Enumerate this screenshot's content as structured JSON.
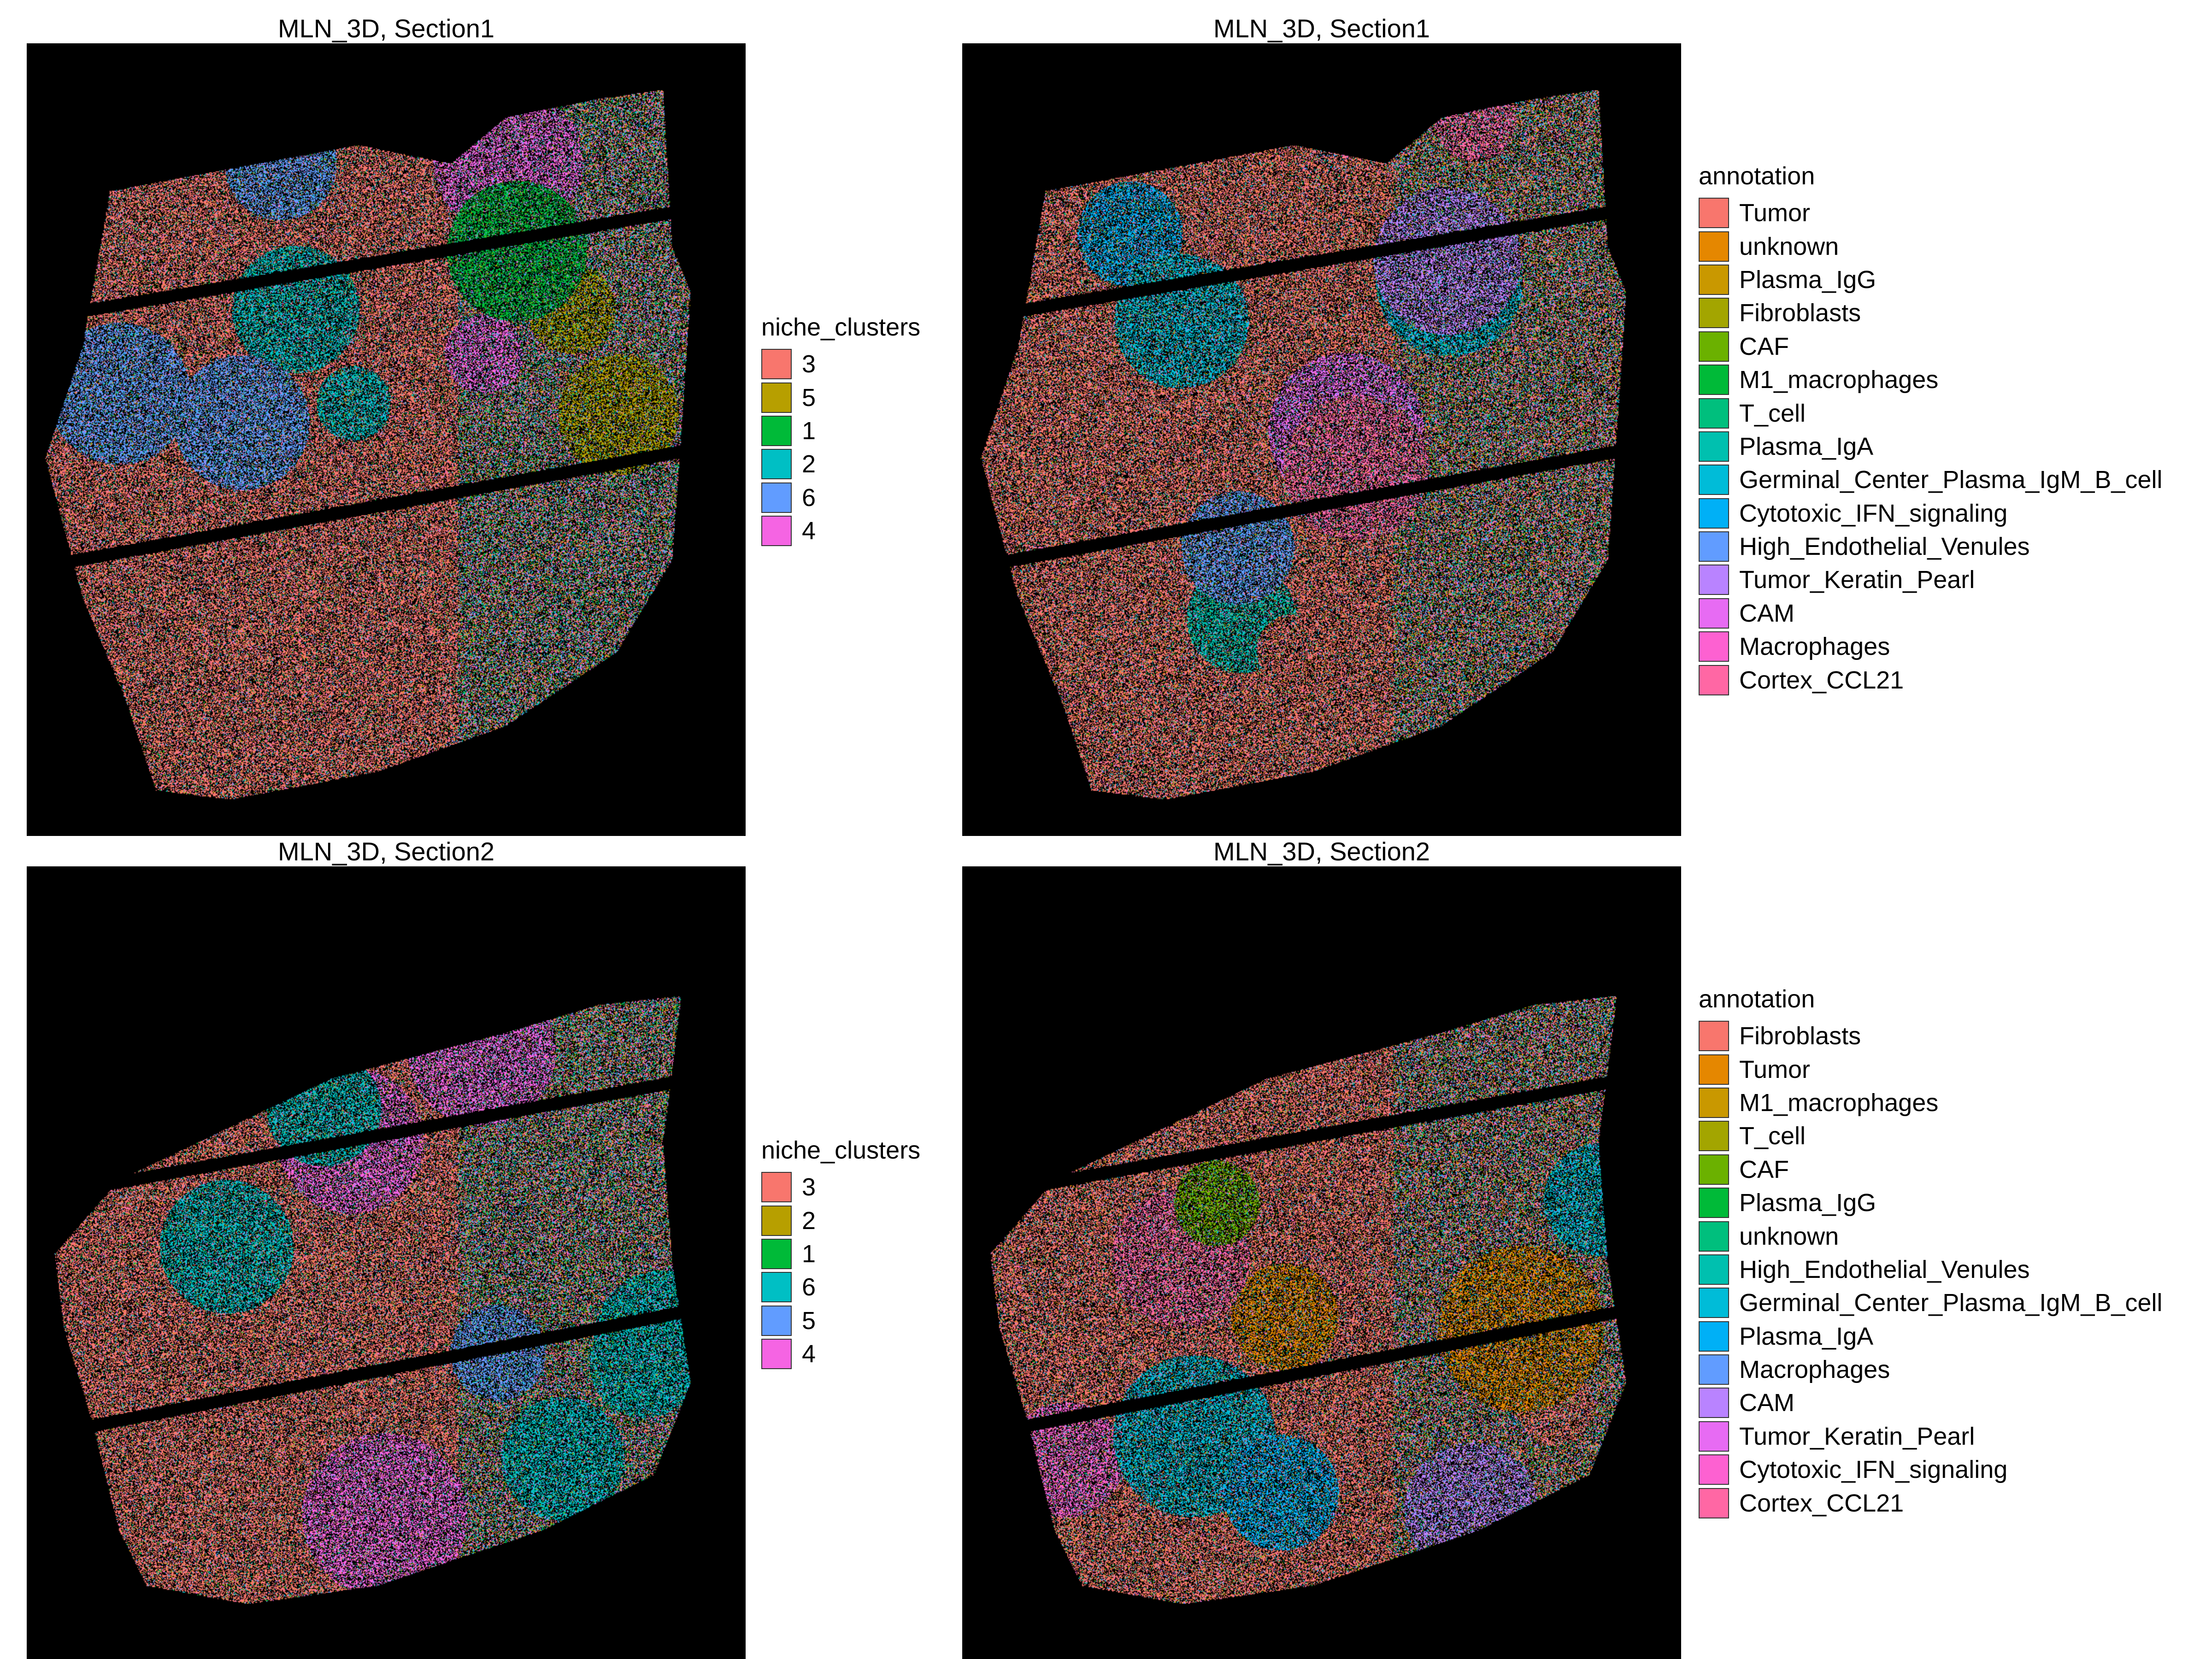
{
  "panels": [
    {
      "title": "MLN_3D, Section1",
      "legend": {
        "title": "niche_clusters",
        "items": [
          {
            "label": "3",
            "color": "#F8766D"
          },
          {
            "label": "5",
            "color": "#B79F00"
          },
          {
            "label": "1",
            "color": "#00BA38"
          },
          {
            "label": "2",
            "color": "#00BFC4"
          },
          {
            "label": "6",
            "color": "#619CFF"
          },
          {
            "label": "4",
            "color": "#F564E3"
          }
        ]
      }
    },
    {
      "title": "MLN_3D, Section1",
      "legend": {
        "title": "annotation",
        "items": [
          {
            "label": "Tumor",
            "color": "#F8766D"
          },
          {
            "label": "unknown",
            "color": "#E58700"
          },
          {
            "label": "Plasma_IgG",
            "color": "#C99800"
          },
          {
            "label": "Fibroblasts",
            "color": "#A3A500"
          },
          {
            "label": "CAF",
            "color": "#6BB100"
          },
          {
            "label": "M1_macrophages",
            "color": "#00BA38"
          },
          {
            "label": "T_cell",
            "color": "#00BF7D"
          },
          {
            "label": "Plasma_IgA",
            "color": "#00C0AF"
          },
          {
            "label": "Germinal_Center_Plasma_IgM_B_cell",
            "color": "#00BCD8"
          },
          {
            "label": "Cytotoxic_IFN_signaling",
            "color": "#00B0F6"
          },
          {
            "label": "High_Endothelial_Venules",
            "color": "#619CFF"
          },
          {
            "label": "Tumor_Keratin_Pearl",
            "color": "#B983FF"
          },
          {
            "label": "CAM",
            "color": "#E76BF3"
          },
          {
            "label": "Macrophages",
            "color": "#FD61D1"
          },
          {
            "label": "Cortex_CCL21",
            "color": "#FF67A4"
          }
        ]
      }
    },
    {
      "title": "MLN_3D, Section2",
      "legend": {
        "title": "niche_clusters",
        "items": [
          {
            "label": "3",
            "color": "#F8766D"
          },
          {
            "label": "2",
            "color": "#B79F00"
          },
          {
            "label": "1",
            "color": "#00BA38"
          },
          {
            "label": "6",
            "color": "#00BFC4"
          },
          {
            "label": "5",
            "color": "#619CFF"
          },
          {
            "label": "4",
            "color": "#F564E3"
          }
        ]
      }
    },
    {
      "title": "MLN_3D, Section2",
      "legend": {
        "title": "annotation",
        "items": [
          {
            "label": "Fibroblasts",
            "color": "#F8766D"
          },
          {
            "label": "Tumor",
            "color": "#E58700"
          },
          {
            "label": "M1_macrophages",
            "color": "#C99800"
          },
          {
            "label": "T_cell",
            "color": "#A3A500"
          },
          {
            "label": "CAF",
            "color": "#6BB100"
          },
          {
            "label": "Plasma_IgG",
            "color": "#00BA38"
          },
          {
            "label": "unknown",
            "color": "#00BF7D"
          },
          {
            "label": "High_Endothelial_Venules",
            "color": "#00C0AF"
          },
          {
            "label": "Germinal_Center_Plasma_IgM_B_cell",
            "color": "#00BCD8"
          },
          {
            "label": "Plasma_IgA",
            "color": "#00B0F6"
          },
          {
            "label": "Macrophages",
            "color": "#619CFF"
          },
          {
            "label": "CAM",
            "color": "#B983FF"
          },
          {
            "label": "Tumor_Keratin_Pearl",
            "color": "#E76BF3"
          },
          {
            "label": "Cytotoxic_IFN_signaling",
            "color": "#FD61D1"
          },
          {
            "label": "Cortex_CCL21",
            "color": "#FF67A4"
          }
        ]
      }
    }
  ]
}
